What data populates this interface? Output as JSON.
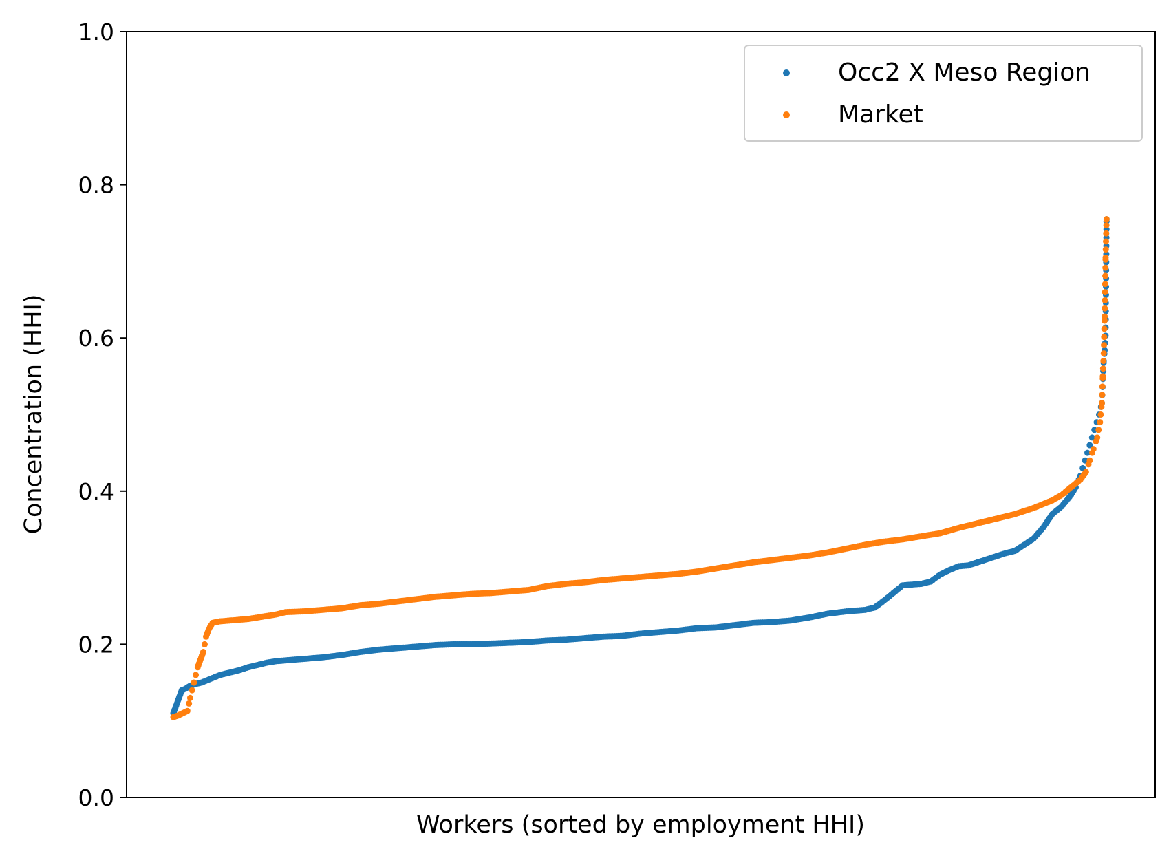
{
  "chart_data": {
    "type": "scatter",
    "title": "",
    "xlabel": "Workers (sorted by employment HHI)",
    "ylabel": "Concentration (HHI)",
    "ylim": [
      0.0,
      1.0
    ],
    "yticks": [
      0.0,
      0.2,
      0.4,
      0.6,
      0.8,
      1.0
    ],
    "ytick_labels": [
      "0.0",
      "0.2",
      "0.4",
      "0.6",
      "0.8",
      "1.0"
    ],
    "xticks": [],
    "grid": false,
    "legend_position": "top-right",
    "x_description": "rank percentile of workers (0-100)",
    "xlim": [
      -5,
      105
    ],
    "series": [
      {
        "name": "Occ2 X Meso Region",
        "color": "#1f77b4",
        "points": [
          [
            0,
            0.11
          ],
          [
            0.3,
            0.12
          ],
          [
            0.6,
            0.13
          ],
          [
            0.9,
            0.14
          ],
          [
            1.3,
            0.142
          ],
          [
            1.8,
            0.146
          ],
          [
            2.3,
            0.148
          ],
          [
            3,
            0.15
          ],
          [
            4,
            0.155
          ],
          [
            5,
            0.16
          ],
          [
            6,
            0.163
          ],
          [
            7,
            0.166
          ],
          [
            8,
            0.17
          ],
          [
            9,
            0.173
          ],
          [
            10,
            0.176
          ],
          [
            11,
            0.178
          ],
          [
            12,
            0.179
          ],
          [
            14,
            0.181
          ],
          [
            16,
            0.183
          ],
          [
            18,
            0.186
          ],
          [
            20,
            0.19
          ],
          [
            22,
            0.193
          ],
          [
            24,
            0.195
          ],
          [
            26,
            0.197
          ],
          [
            28,
            0.199
          ],
          [
            30,
            0.2
          ],
          [
            32,
            0.2
          ],
          [
            34,
            0.201
          ],
          [
            36,
            0.202
          ],
          [
            38,
            0.203
          ],
          [
            40,
            0.205
          ],
          [
            42,
            0.206
          ],
          [
            44,
            0.208
          ],
          [
            46,
            0.21
          ],
          [
            48,
            0.211
          ],
          [
            50,
            0.214
          ],
          [
            52,
            0.216
          ],
          [
            54,
            0.218
          ],
          [
            56,
            0.221
          ],
          [
            58,
            0.222
          ],
          [
            60,
            0.225
          ],
          [
            62,
            0.228
          ],
          [
            64,
            0.229
          ],
          [
            66,
            0.231
          ],
          [
            68,
            0.235
          ],
          [
            70,
            0.24
          ],
          [
            72,
            0.243
          ],
          [
            74,
            0.245
          ],
          [
            75,
            0.248
          ],
          [
            76,
            0.257
          ],
          [
            77,
            0.267
          ],
          [
            78,
            0.277
          ],
          [
            80,
            0.279
          ],
          [
            81,
            0.282
          ],
          [
            82,
            0.291
          ],
          [
            83,
            0.297
          ],
          [
            84,
            0.302
          ],
          [
            85,
            0.303
          ],
          [
            86,
            0.307
          ],
          [
            87,
            0.311
          ],
          [
            88,
            0.315
          ],
          [
            89,
            0.319
          ],
          [
            90,
            0.322
          ],
          [
            91,
            0.33
          ],
          [
            92,
            0.338
          ],
          [
            93,
            0.352
          ],
          [
            94,
            0.37
          ],
          [
            95,
            0.38
          ],
          [
            96,
            0.395
          ],
          [
            96.5,
            0.405
          ],
          [
            97,
            0.42
          ],
          [
            97.5,
            0.44
          ],
          [
            98,
            0.46
          ],
          [
            98.5,
            0.48
          ],
          [
            99,
            0.5
          ],
          [
            99.3,
            0.515
          ],
          [
            99.5,
            0.57
          ],
          [
            99.6,
            0.584
          ],
          [
            99.7,
            0.603
          ],
          [
            99.8,
            0.755
          ]
        ]
      },
      {
        "name": "Market",
        "color": "#ff7f0e",
        "points": [
          [
            0,
            0.105
          ],
          [
            0.5,
            0.107
          ],
          [
            1,
            0.11
          ],
          [
            1.5,
            0.113
          ],
          [
            1.8,
            0.13
          ],
          [
            2.2,
            0.15
          ],
          [
            2.6,
            0.17
          ],
          [
            2.9,
            0.18
          ],
          [
            3.2,
            0.19
          ],
          [
            3.5,
            0.21
          ],
          [
            3.8,
            0.22
          ],
          [
            4.2,
            0.228
          ],
          [
            5,
            0.23
          ],
          [
            6,
            0.231
          ],
          [
            7,
            0.232
          ],
          [
            8,
            0.233
          ],
          [
            9,
            0.235
          ],
          [
            10,
            0.237
          ],
          [
            11,
            0.239
          ],
          [
            12,
            0.242
          ],
          [
            14,
            0.243
          ],
          [
            16,
            0.245
          ],
          [
            18,
            0.247
          ],
          [
            20,
            0.251
          ],
          [
            22,
            0.253
          ],
          [
            24,
            0.256
          ],
          [
            26,
            0.259
          ],
          [
            28,
            0.262
          ],
          [
            30,
            0.264
          ],
          [
            32,
            0.266
          ],
          [
            34,
            0.267
          ],
          [
            36,
            0.269
          ],
          [
            38,
            0.271
          ],
          [
            40,
            0.276
          ],
          [
            42,
            0.279
          ],
          [
            44,
            0.281
          ],
          [
            46,
            0.284
          ],
          [
            48,
            0.286
          ],
          [
            50,
            0.288
          ],
          [
            52,
            0.29
          ],
          [
            54,
            0.292
          ],
          [
            56,
            0.295
          ],
          [
            58,
            0.299
          ],
          [
            60,
            0.303
          ],
          [
            62,
            0.307
          ],
          [
            64,
            0.31
          ],
          [
            66,
            0.313
          ],
          [
            68,
            0.316
          ],
          [
            70,
            0.32
          ],
          [
            72,
            0.325
          ],
          [
            74,
            0.33
          ],
          [
            76,
            0.334
          ],
          [
            78,
            0.337
          ],
          [
            80,
            0.341
          ],
          [
            82,
            0.345
          ],
          [
            84,
            0.352
          ],
          [
            86,
            0.358
          ],
          [
            88,
            0.364
          ],
          [
            90,
            0.37
          ],
          [
            92,
            0.378
          ],
          [
            94,
            0.388
          ],
          [
            95,
            0.395
          ],
          [
            96,
            0.405
          ],
          [
            97,
            0.415
          ],
          [
            97.6,
            0.425
          ],
          [
            98,
            0.44
          ],
          [
            98.4,
            0.455
          ],
          [
            98.8,
            0.47
          ],
          [
            99.1,
            0.49
          ],
          [
            99.3,
            0.515
          ],
          [
            99.4,
            0.55
          ],
          [
            99.5,
            0.58
          ],
          [
            99.6,
            0.628
          ],
          [
            99.7,
            0.705
          ],
          [
            99.8,
            0.755
          ]
        ]
      }
    ]
  }
}
